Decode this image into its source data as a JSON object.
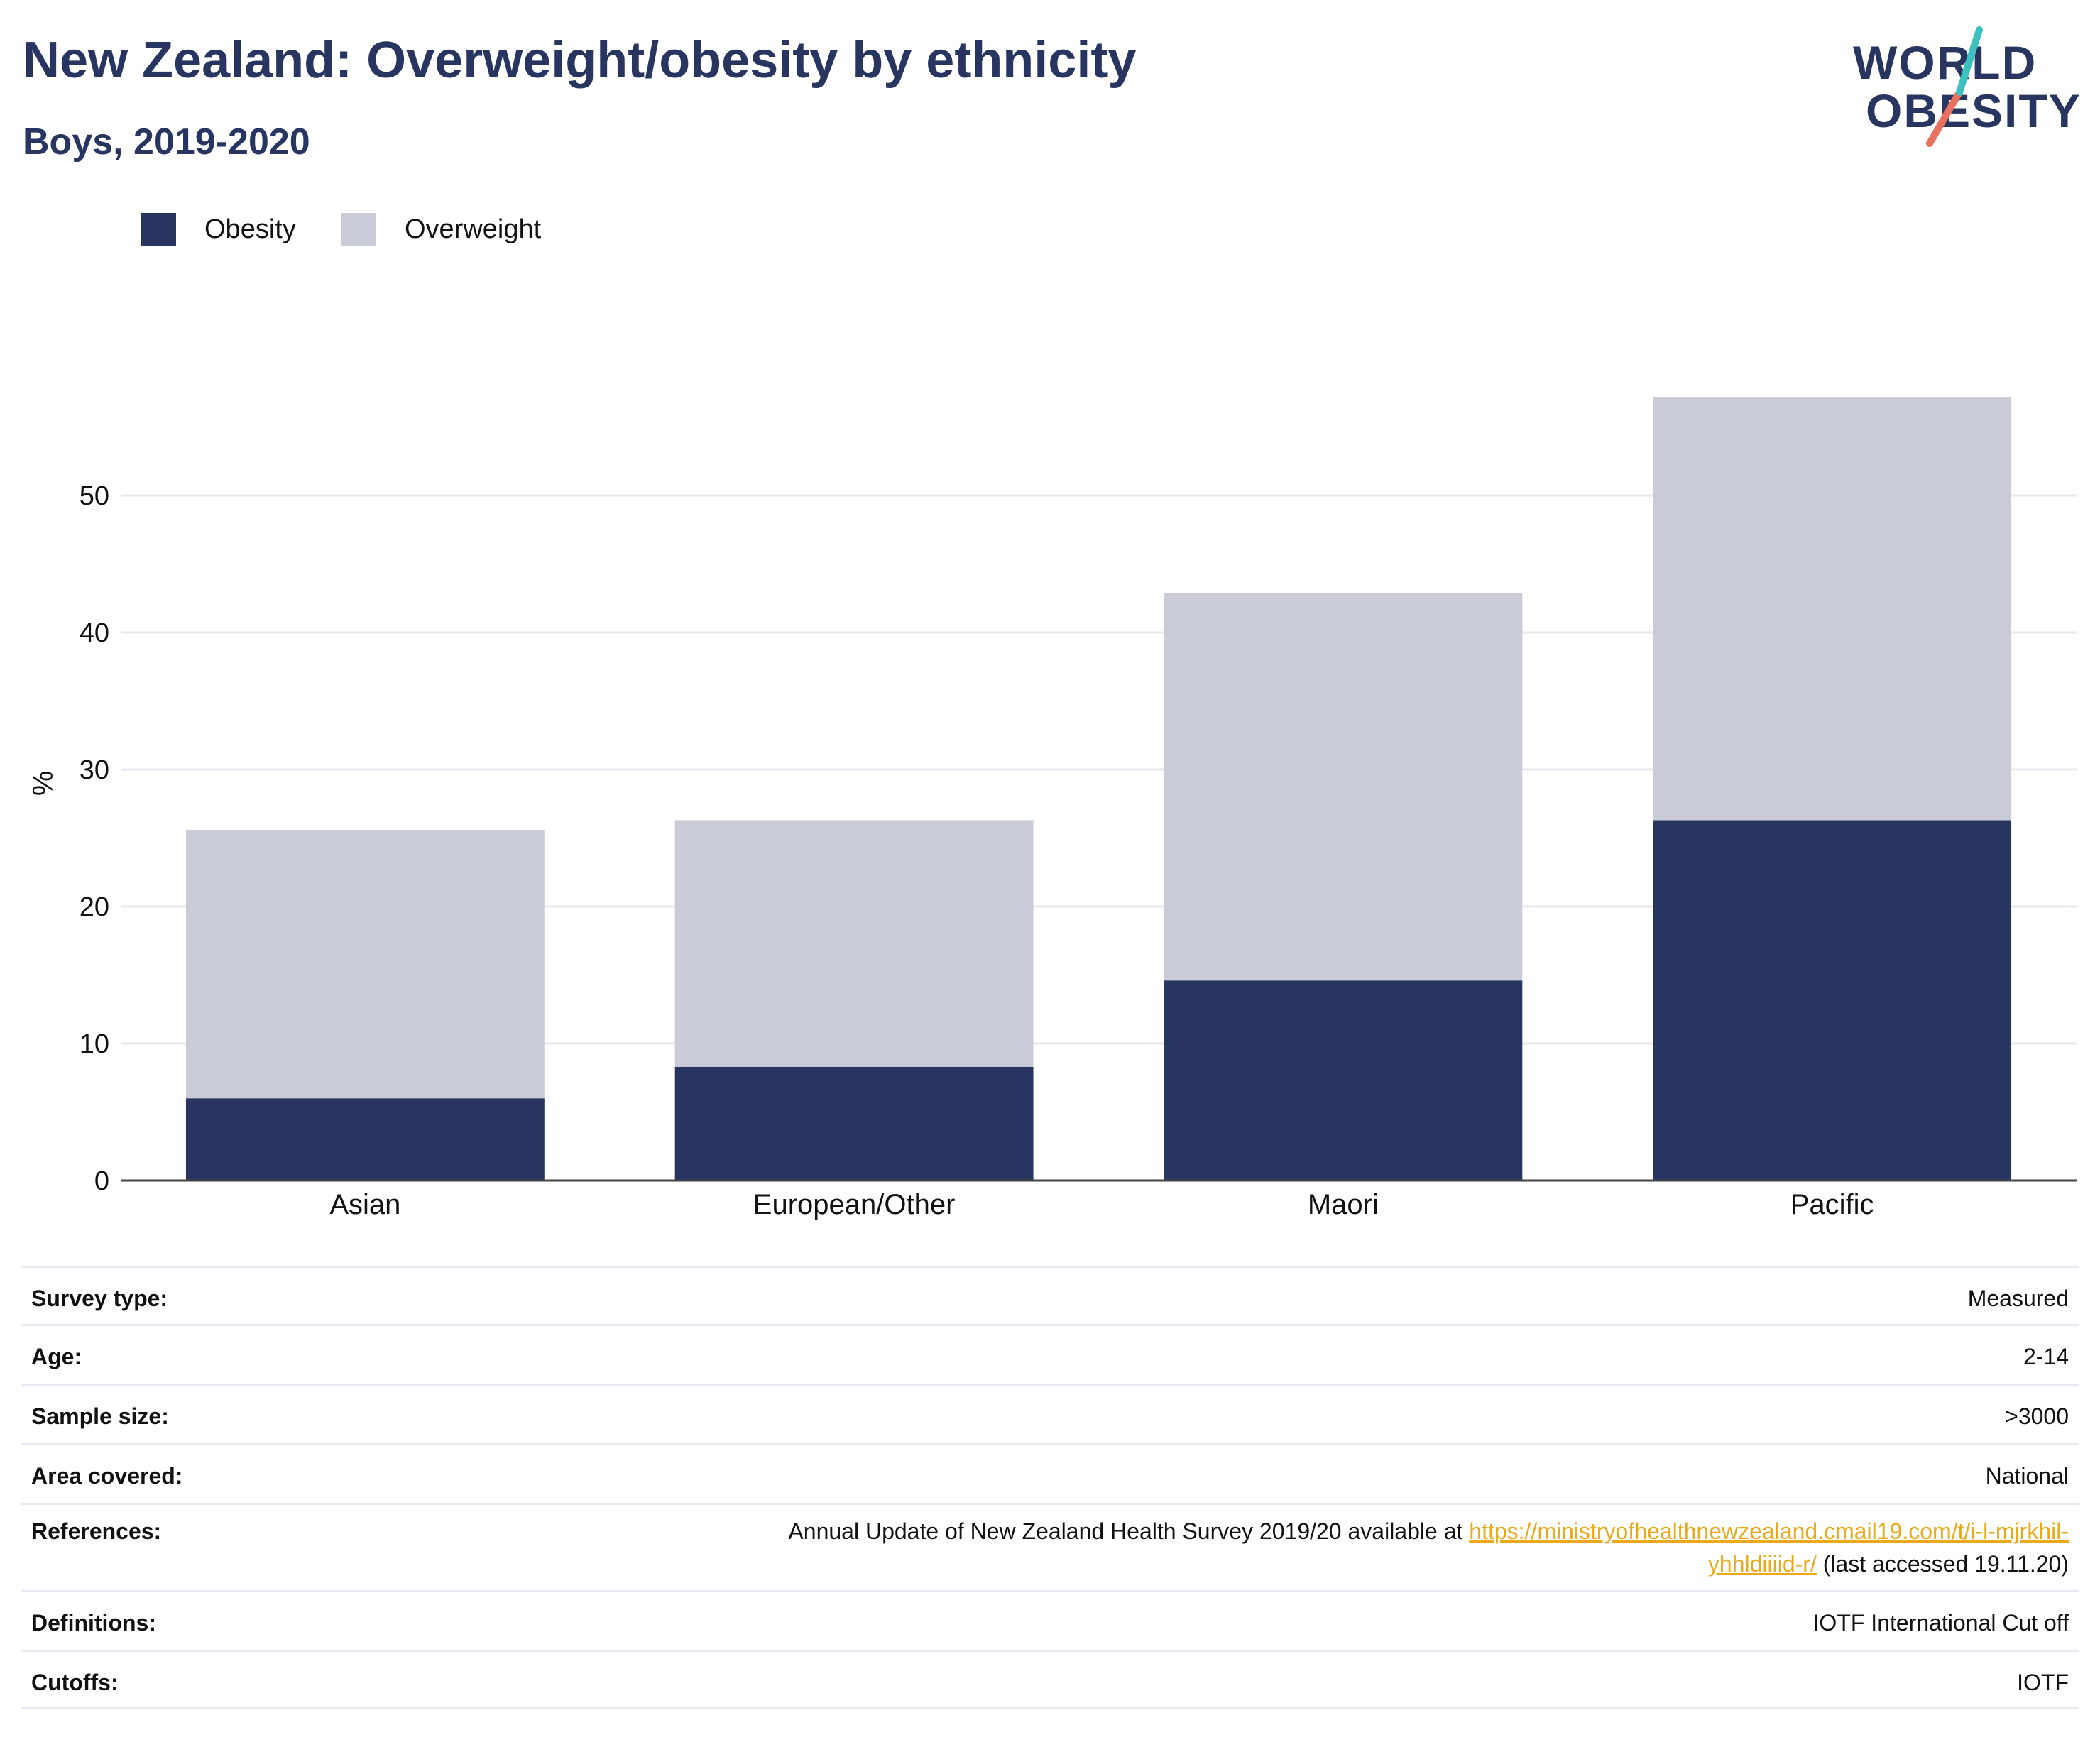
{
  "header": {
    "title": "New Zealand: Overweight/obesity by ethnicity",
    "subtitle": "Boys, 2019-2020"
  },
  "logo": {
    "line1": "WORLD",
    "line2": "OBESITY"
  },
  "legend": [
    {
      "label": "Obesity",
      "color": "#283561"
    },
    {
      "label": "Overweight",
      "color": "#c9ccd7"
    }
  ],
  "chart_data": {
    "type": "bar",
    "stacked": true,
    "categories": [
      "Asian",
      "European/Other",
      "Maori",
      "Pacific"
    ],
    "series": [
      {
        "name": "Obesity",
        "values": [
          6.0,
          8.3,
          14.6,
          26.3
        ],
        "color": "#283561"
      },
      {
        "name": "Overweight",
        "values": [
          19.6,
          18.0,
          28.3,
          30.9
        ],
        "color": "#c9ccd7"
      }
    ],
    "ylabel": "%",
    "xlabel": "",
    "ylim": [
      0,
      60
    ],
    "yticks": [
      0,
      10,
      20,
      30,
      40,
      50
    ],
    "grid": true
  },
  "meta": {
    "rows": [
      {
        "key": "Survey type:",
        "value": "Measured"
      },
      {
        "key": "Age:",
        "value": "2-14"
      },
      {
        "key": "Sample size:",
        "value": ">3000"
      },
      {
        "key": "Area covered:",
        "value": "National"
      }
    ],
    "references": {
      "key": "References:",
      "text": "Annual Update of New Zealand Health Survey 2019/20 available at ",
      "link_line1": "https://ministryofhealthnewzealand.cmail19.com/t/i-l-mjrkhil-",
      "link_line2": "yhhldiiiid-r/",
      "suffix": " (last accessed 19.11.20)"
    },
    "rows_after": [
      {
        "key": "Definitions:",
        "value": "IOTF International Cut off"
      },
      {
        "key": "Cutoffs:",
        "value": "IOTF"
      }
    ]
  }
}
